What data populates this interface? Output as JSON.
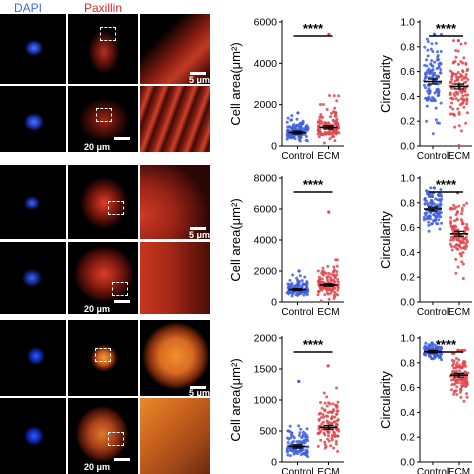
{
  "header": {
    "dapi_label": "DAPI",
    "paxillin_label": "Paxillin",
    "dapi_color": "#3b6fd8",
    "paxillin_color": "#d62c2c"
  },
  "scalebars": {
    "panel": "20 μm",
    "zoom": "5 μm"
  },
  "colors": {
    "control": "#3f5fe0",
    "ecm": "#e0474c",
    "tile_bg": "#000000"
  },
  "groups": [
    "Control",
    "ECM"
  ],
  "significance": "****",
  "chart_data": [
    {
      "type": "scatter",
      "row": 1,
      "metric": "area",
      "ylabel": "Cell area(μm²)",
      "ylim": [
        0,
        6000
      ],
      "yticks": [
        0,
        2000,
        4000,
        6000
      ],
      "categories": [
        "Control",
        "ECM"
      ],
      "series": [
        {
          "name": "Control",
          "mean": 650,
          "sem": 70,
          "spread": 300,
          "max": 1600
        },
        {
          "name": "ECM",
          "mean": 900,
          "sem": 80,
          "spread": 450,
          "max": 5400
        }
      ]
    },
    {
      "type": "scatter",
      "row": 1,
      "metric": "circularity",
      "ylabel": "Circularity",
      "ylim": [
        0,
        1.0
      ],
      "yticks": [
        0.0,
        0.2,
        0.4,
        0.6,
        0.8,
        1.0
      ],
      "categories": [
        "Control",
        "ECM"
      ],
      "series": [
        {
          "name": "Control",
          "mean": 0.52,
          "sem": 0.02,
          "spread": 0.17,
          "max": 0.9
        },
        {
          "name": "ECM",
          "mean": 0.48,
          "sem": 0.02,
          "spread": 0.17,
          "max": 0.85
        }
      ]
    },
    {
      "type": "scatter",
      "row": 2,
      "metric": "area",
      "ylabel": "Cell area(μm²)",
      "ylim": [
        0,
        8000
      ],
      "yticks": [
        0,
        2000,
        4000,
        6000,
        8000
      ],
      "categories": [
        "Control",
        "ECM"
      ],
      "series": [
        {
          "name": "Control",
          "mean": 800,
          "sem": 60,
          "spread": 300,
          "max": 2000
        },
        {
          "name": "ECM",
          "mean": 1100,
          "sem": 80,
          "spread": 500,
          "max": 5800
        }
      ]
    },
    {
      "type": "scatter",
      "row": 2,
      "metric": "circularity",
      "ylabel": "Circularity",
      "ylim": [
        0,
        1.0
      ],
      "yticks": [
        0.0,
        0.2,
        0.4,
        0.6,
        0.8,
        1.0
      ],
      "categories": [
        "Control",
        "ECM"
      ],
      "series": [
        {
          "name": "Control",
          "mean": 0.75,
          "sem": 0.015,
          "spread": 0.08,
          "max": 0.92
        },
        {
          "name": "ECM",
          "mean": 0.55,
          "sem": 0.02,
          "spread": 0.13,
          "max": 0.88
        }
      ]
    },
    {
      "type": "scatter",
      "row": 3,
      "metric": "area",
      "ylabel": "Cell area(μm²)",
      "ylim": [
        0,
        2000
      ],
      "yticks": [
        0,
        500,
        1000,
        1500,
        2000
      ],
      "categories": [
        "Control",
        "ECM"
      ],
      "series": [
        {
          "name": "Control",
          "mean": 250,
          "sem": 25,
          "spread": 120,
          "max": 1300
        },
        {
          "name": "ECM",
          "mean": 560,
          "sem": 30,
          "spread": 260,
          "max": 1550
        }
      ]
    },
    {
      "type": "scatter",
      "row": 3,
      "metric": "circularity",
      "ylabel": "Circularity",
      "ylim": [
        0,
        1.0
      ],
      "yticks": [
        0.0,
        0.2,
        0.4,
        0.6,
        0.8,
        1.0
      ],
      "categories": [
        "Control",
        "ECM"
      ],
      "series": [
        {
          "name": "Control",
          "mean": 0.89,
          "sem": 0.01,
          "spread": 0.03,
          "max": 0.96
        },
        {
          "name": "ECM",
          "mean": 0.7,
          "sem": 0.015,
          "spread": 0.1,
          "max": 0.9
        }
      ]
    }
  ]
}
